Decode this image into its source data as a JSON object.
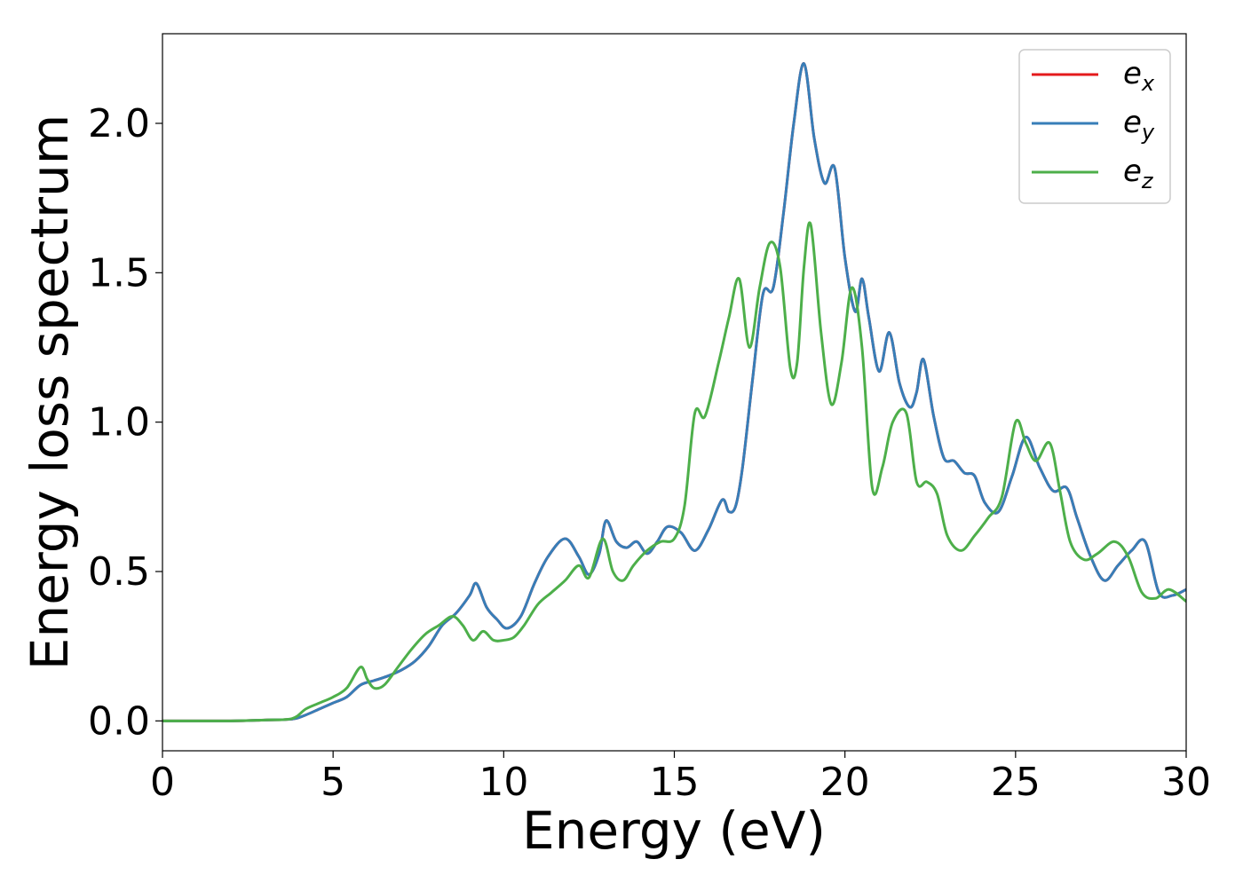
{
  "chart_data": {
    "type": "line",
    "title": "",
    "xlabel": "Energy (eV)",
    "ylabel": "Energy loss spectrum",
    "xlim": [
      0,
      30
    ],
    "ylim": [
      -0.1,
      2.3
    ],
    "xticks": [
      0,
      5,
      10,
      15,
      20,
      25,
      30
    ],
    "xtick_labels": [
      "0",
      "5",
      "10",
      "15",
      "20",
      "25",
      "30"
    ],
    "yticks": [
      0.0,
      0.5,
      1.0,
      1.5,
      2.0
    ],
    "ytick_labels": [
      "0.0",
      "0.5",
      "1.0",
      "1.5",
      "2.0"
    ],
    "grid": false,
    "legend_position": "top-right",
    "series": [
      {
        "name": "e_x",
        "legend_main": "e",
        "legend_sub": "x",
        "color": "#e41a1c",
        "x": [
          0,
          2,
          3,
          3.8,
          4.2,
          4.6,
          5,
          5.4,
          5.8,
          6.2,
          6.6,
          7,
          7.4,
          7.8,
          8.2,
          8.6,
          9.0,
          9.2,
          9.5,
          9.8,
          10.1,
          10.5,
          10.9,
          11.3,
          11.8,
          12.2,
          12.5,
          12.8,
          13.0,
          13.3,
          13.6,
          13.9,
          14.2,
          14.5,
          14.8,
          15.2,
          15.6,
          16.0,
          16.4,
          16.6,
          16.8,
          17.0,
          17.3,
          17.6,
          17.9,
          18.2,
          18.5,
          18.8,
          19.1,
          19.4,
          19.7,
          20.0,
          20.3,
          20.5,
          20.7,
          21.0,
          21.3,
          21.6,
          21.9,
          22.1,
          22.3,
          22.6,
          22.9,
          23.2,
          23.5,
          23.8,
          24.1,
          24.5,
          24.9,
          25.3,
          25.7,
          26.1,
          26.5,
          26.8,
          27.2,
          27.6,
          28.0,
          28.4,
          28.8,
          29.2,
          29.6,
          30
        ],
        "y": [
          0,
          0,
          0.003,
          0.006,
          0.02,
          0.04,
          0.06,
          0.08,
          0.12,
          0.135,
          0.15,
          0.17,
          0.2,
          0.25,
          0.32,
          0.36,
          0.42,
          0.46,
          0.38,
          0.34,
          0.31,
          0.35,
          0.46,
          0.55,
          0.61,
          0.55,
          0.49,
          0.56,
          0.67,
          0.6,
          0.58,
          0.6,
          0.56,
          0.6,
          0.65,
          0.63,
          0.57,
          0.64,
          0.74,
          0.7,
          0.72,
          0.85,
          1.15,
          1.43,
          1.45,
          1.7,
          2.0,
          2.2,
          1.95,
          1.8,
          1.85,
          1.55,
          1.37,
          1.48,
          1.35,
          1.17,
          1.3,
          1.13,
          1.05,
          1.1,
          1.21,
          1.02,
          0.88,
          0.87,
          0.83,
          0.82,
          0.73,
          0.7,
          0.82,
          0.95,
          0.85,
          0.77,
          0.78,
          0.68,
          0.55,
          0.47,
          0.52,
          0.57,
          0.6,
          0.43,
          0.42,
          0.44
        ]
      },
      {
        "name": "e_y",
        "legend_main": "e",
        "legend_sub": "y",
        "color": "#377eb8",
        "x": [
          0,
          2,
          3,
          3.8,
          4.2,
          4.6,
          5,
          5.4,
          5.8,
          6.2,
          6.6,
          7,
          7.4,
          7.8,
          8.2,
          8.6,
          9.0,
          9.2,
          9.5,
          9.8,
          10.1,
          10.5,
          10.9,
          11.3,
          11.8,
          12.2,
          12.5,
          12.8,
          13.0,
          13.3,
          13.6,
          13.9,
          14.2,
          14.5,
          14.8,
          15.2,
          15.6,
          16.0,
          16.4,
          16.6,
          16.8,
          17.0,
          17.3,
          17.6,
          17.9,
          18.2,
          18.5,
          18.8,
          19.1,
          19.4,
          19.7,
          20.0,
          20.3,
          20.5,
          20.7,
          21.0,
          21.3,
          21.6,
          21.9,
          22.1,
          22.3,
          22.6,
          22.9,
          23.2,
          23.5,
          23.8,
          24.1,
          24.5,
          24.9,
          25.3,
          25.7,
          26.1,
          26.5,
          26.8,
          27.2,
          27.6,
          28.0,
          28.4,
          28.8,
          29.2,
          29.6,
          30
        ],
        "y": [
          0,
          0,
          0.003,
          0.006,
          0.02,
          0.04,
          0.06,
          0.08,
          0.12,
          0.135,
          0.15,
          0.17,
          0.2,
          0.25,
          0.32,
          0.36,
          0.42,
          0.46,
          0.38,
          0.34,
          0.31,
          0.35,
          0.46,
          0.55,
          0.61,
          0.55,
          0.49,
          0.56,
          0.67,
          0.6,
          0.58,
          0.6,
          0.56,
          0.6,
          0.65,
          0.63,
          0.57,
          0.64,
          0.74,
          0.7,
          0.72,
          0.85,
          1.15,
          1.43,
          1.45,
          1.7,
          2.0,
          2.2,
          1.95,
          1.8,
          1.85,
          1.55,
          1.37,
          1.48,
          1.35,
          1.17,
          1.3,
          1.13,
          1.05,
          1.1,
          1.21,
          1.02,
          0.88,
          0.87,
          0.83,
          0.82,
          0.73,
          0.7,
          0.82,
          0.95,
          0.85,
          0.77,
          0.78,
          0.68,
          0.55,
          0.47,
          0.52,
          0.57,
          0.6,
          0.43,
          0.42,
          0.44
        ]
      },
      {
        "name": "e_z",
        "legend_main": "e",
        "legend_sub": "z",
        "color": "#4daf4a",
        "x": [
          0,
          2,
          3,
          3.8,
          4.2,
          4.6,
          5,
          5.4,
          5.8,
          6.0,
          6.2,
          6.5,
          6.9,
          7.3,
          7.7,
          8.1,
          8.5,
          8.8,
          9.1,
          9.4,
          9.7,
          10.0,
          10.3,
          10.6,
          11.0,
          11.4,
          11.8,
          12.2,
          12.5,
          12.9,
          13.2,
          13.5,
          13.8,
          14.2,
          14.6,
          15.0,
          15.3,
          15.6,
          15.9,
          16.3,
          16.6,
          16.9,
          17.2,
          17.5,
          17.8,
          18.1,
          18.4,
          18.6,
          18.8,
          19.0,
          19.3,
          19.6,
          19.9,
          20.2,
          20.5,
          20.8,
          21.1,
          21.4,
          21.8,
          22.1,
          22.4,
          22.7,
          23.0,
          23.4,
          23.8,
          24.2,
          24.6,
          25.0,
          25.3,
          25.6,
          26.0,
          26.3,
          26.6,
          27.0,
          27.4,
          27.9,
          28.3,
          28.7,
          29.1,
          29.5,
          30
        ],
        "y": [
          0,
          0,
          0.003,
          0.008,
          0.04,
          0.06,
          0.08,
          0.11,
          0.18,
          0.14,
          0.11,
          0.12,
          0.18,
          0.24,
          0.29,
          0.32,
          0.35,
          0.32,
          0.27,
          0.3,
          0.27,
          0.27,
          0.28,
          0.32,
          0.39,
          0.43,
          0.47,
          0.52,
          0.48,
          0.61,
          0.5,
          0.47,
          0.52,
          0.57,
          0.6,
          0.61,
          0.72,
          1.03,
          1.02,
          1.2,
          1.35,
          1.48,
          1.25,
          1.45,
          1.6,
          1.52,
          1.18,
          1.2,
          1.52,
          1.66,
          1.3,
          1.06,
          1.2,
          1.45,
          1.25,
          0.78,
          0.85,
          1.0,
          1.03,
          0.8,
          0.8,
          0.76,
          0.62,
          0.57,
          0.62,
          0.68,
          0.75,
          1.0,
          0.93,
          0.87,
          0.93,
          0.77,
          0.6,
          0.54,
          0.56,
          0.6,
          0.55,
          0.43,
          0.41,
          0.44,
          0.4
        ]
      }
    ]
  }
}
